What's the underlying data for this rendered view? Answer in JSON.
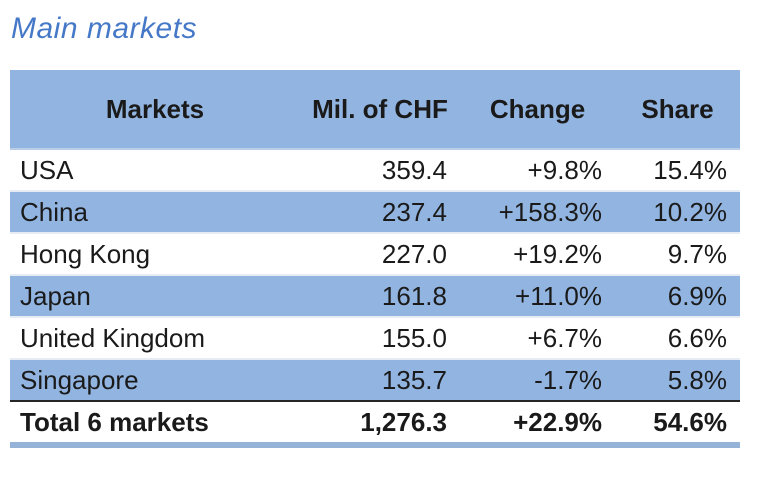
{
  "title": "Main markets",
  "table": {
    "columns": [
      {
        "label": "Markets"
      },
      {
        "label": "Mil. of CHF"
      },
      {
        "label": "Change"
      },
      {
        "label": "Share"
      }
    ],
    "rows": [
      {
        "market": "USA",
        "chf": "359.4",
        "change": "+9.8%",
        "share": "15.4%"
      },
      {
        "market": "China",
        "chf": "237.4",
        "change": "+158.3%",
        "share": "10.2%"
      },
      {
        "market": "Hong Kong",
        "chf": "227.0",
        "change": "+19.2%",
        "share": "9.7%"
      },
      {
        "market": "Japan",
        "chf": "161.8",
        "change": "+11.0%",
        "share": "6.9%"
      },
      {
        "market": "United Kingdom",
        "chf": "155.0",
        "change": "+6.7%",
        "share": "6.6%"
      },
      {
        "market": "Singapore",
        "chf": "135.7",
        "change": "-1.7%",
        "share": "5.8%"
      }
    ],
    "total": {
      "market": "Total 6 markets",
      "chf": "1,276.3",
      "change": "+22.9%",
      "share": "54.6%"
    }
  },
  "colors": {
    "band_blue": "#92b4e0",
    "title_blue": "#4678c8",
    "bottom_rule_blue": "#95b3d7",
    "total_rule_dark": "#262626",
    "text": "#1a1a1a"
  }
}
